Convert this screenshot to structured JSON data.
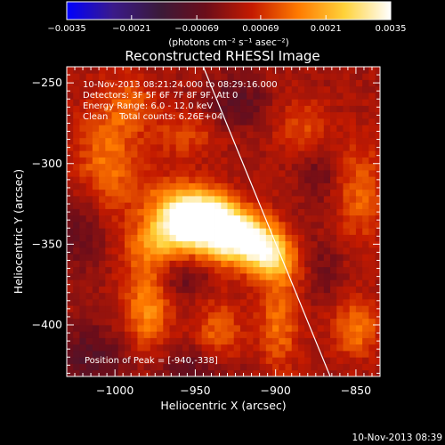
{
  "colorbar": {
    "ticks": [
      "-0.0035",
      "-0.0021",
      "-0.00069",
      "0.00069",
      "0.0021",
      "0.0035"
    ],
    "units": "(photons cm⁻² s⁻¹ asec⁻²)"
  },
  "colors": {
    "background": "#000000",
    "text": "#ffffff",
    "limb": "#ffffff",
    "colorbar_stops": [
      "#0000ff",
      "#3a1a8a",
      "#3a1a3a",
      "#6b0d1a",
      "#c41a00",
      "#ff7a00",
      "#ffd23a",
      "#ffffff"
    ]
  },
  "chart_data": {
    "type": "heatmap",
    "title": "Reconstructed RHESSI Image",
    "xlabel": "Heliocentric X (arcsec)",
    "ylabel": "Heliocentric Y (arcsec)",
    "xlim": [
      -1030,
      -835
    ],
    "ylim": [
      -432,
      -240
    ],
    "x_ticks": [
      -1000,
      -950,
      -900,
      -850
    ],
    "y_ticks": [
      -250,
      -300,
      -350,
      -400
    ],
    "x_tick_labels": [
      "−1000",
      "−950",
      "−900",
      "−850"
    ],
    "y_tick_labels": [
      "−250",
      "−300",
      "−350",
      "−400"
    ],
    "color_range": [
      -0.0035,
      0.0035
    ],
    "info_lines": [
      "10-Nov-2013 08:21:24.000 to 08:29:16.000",
      "Detectors: 3F 5F 6F 7F 8F 9F, Att 0",
      "Energy Range: 6.0 - 12.0 keV",
      "Clean    Total counts: 6.26E+04"
    ],
    "peak_label": "Position of Peak = [-940,-338]",
    "peak": [
      -940,
      -338
    ],
    "limb_line": [
      [
        -945,
        -240
      ],
      [
        -866,
        -432
      ]
    ],
    "sources": [
      {
        "x": -940,
        "y": -338,
        "sx": 22,
        "sy": 12,
        "amp": 0.0052,
        "angle": -25
      },
      {
        "x": -970,
        "y": -345,
        "sx": 16,
        "sy": 10,
        "amp": 0.002,
        "angle": 30
      },
      {
        "x": -905,
        "y": -355,
        "sx": 14,
        "sy": 10,
        "amp": 0.0024,
        "angle": -50
      },
      {
        "x": -1005,
        "y": -300,
        "sx": 14,
        "sy": 25,
        "amp": 0.0013,
        "angle": 0
      },
      {
        "x": -990,
        "y": -262,
        "sx": 12,
        "sy": 12,
        "amp": 0.0009,
        "angle": 0
      },
      {
        "x": -980,
        "y": -390,
        "sx": 10,
        "sy": 18,
        "amp": 0.0016,
        "angle": 0
      },
      {
        "x": -935,
        "y": -405,
        "sx": 10,
        "sy": 14,
        "amp": 0.0011,
        "angle": 0
      },
      {
        "x": -898,
        "y": -400,
        "sx": 9,
        "sy": 20,
        "amp": 0.0012,
        "angle": 0
      },
      {
        "x": -850,
        "y": -402,
        "sx": 10,
        "sy": 12,
        "amp": 0.0014,
        "angle": 0
      },
      {
        "x": -848,
        "y": -318,
        "sx": 11,
        "sy": 22,
        "amp": 0.0011,
        "angle": 0
      },
      {
        "x": -883,
        "y": -278,
        "sx": 12,
        "sy": 12,
        "amp": 0.0009,
        "angle": 0
      },
      {
        "x": -955,
        "y": -282,
        "sx": 14,
        "sy": 10,
        "amp": 0.0008,
        "angle": 0
      },
      {
        "x": -1015,
        "y": -420,
        "sx": 16,
        "sy": 14,
        "amp": -0.001,
        "angle": 0
      },
      {
        "x": -1020,
        "y": -340,
        "sx": 12,
        "sy": 18,
        "amp": -0.0009,
        "angle": 0
      },
      {
        "x": -925,
        "y": -262,
        "sx": 14,
        "sy": 12,
        "amp": -0.0009,
        "angle": 0
      },
      {
        "x": -955,
        "y": -372,
        "sx": 10,
        "sy": 8,
        "amp": -0.0007,
        "angle": 0
      },
      {
        "x": -872,
        "y": -305,
        "sx": 10,
        "sy": 16,
        "amp": -0.0006,
        "angle": 0
      },
      {
        "x": -870,
        "y": -365,
        "sx": 9,
        "sy": 14,
        "amp": -0.0006,
        "angle": 0
      },
      {
        "x": -950,
        "y": -425,
        "sx": 18,
        "sy": 8,
        "amp": -0.0008,
        "angle": 0
      }
    ]
  },
  "footer": {
    "timestamp": "10-Nov-2013 08:39"
  }
}
